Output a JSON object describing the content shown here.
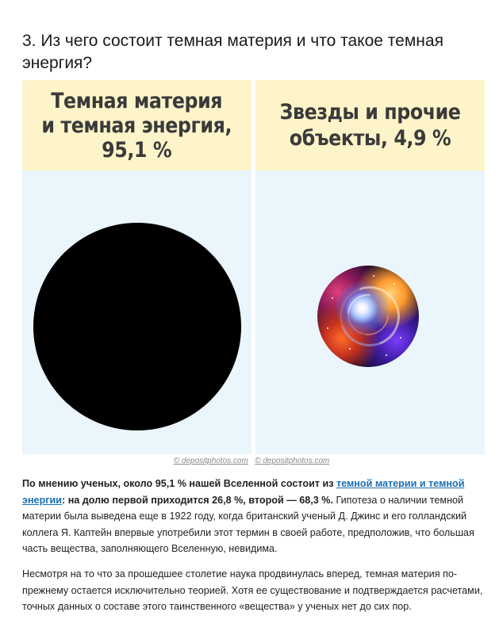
{
  "heading": "3. Из чего состоит темная материя и что такое темная энергия?",
  "panels": {
    "left": {
      "label": "Темная материя\nи темная энергия,\n95,1 %"
    },
    "right": {
      "label": "Звезды и прочие\nобъекты, 4,9 %"
    }
  },
  "credits": {
    "first": "© depositphotos.com",
    "second": "© depositphotos.com"
  },
  "paragraph1": {
    "bold_lead": "По мнению ученых, около 95,1 % нашей Вселенной состоит из ",
    "link": "темной материи и темной энергии",
    "bold_tail": ": на долю первой приходится 26,8 %, второй — 68,3 %.",
    "rest": " Гипотеза о наличии темной материи была выведена еще в 1922 году, когда британский ученый Д. Джинс и его голландский коллега Я. Каптейн впервые употребили этот термин в своей работе, предположив, что большая часть вещества, заполняющего Вселенную, невидима."
  },
  "paragraph2": "Несмотря на то что за прошедшее столетие наука продвинулась вперед, темная материя по-прежнему остается исключительно теорией. Хотя ее существование и подтверждается расчетами, точных данных о составе этого таинственного «вещества» у ученых нет до сих пор."
}
